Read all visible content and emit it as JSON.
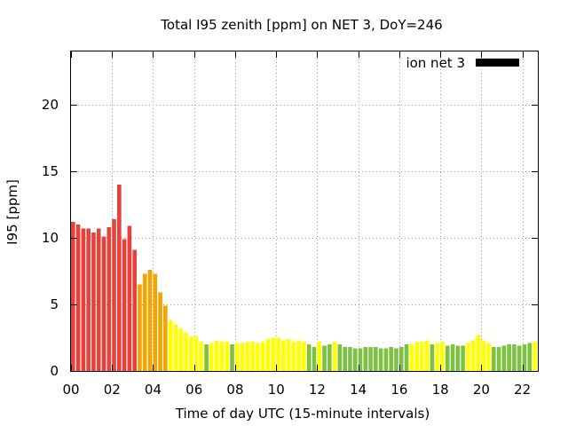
{
  "chart_data": {
    "type": "bar",
    "title": "Total I95 zenith [ppm] on NET 3, DoY=246",
    "xlabel": "Time of day UTC (15-minute intervals)",
    "ylabel": "I95 [ppm]",
    "ylim": [
      0,
      24
    ],
    "xlim": [
      0,
      22.75
    ],
    "grid": true,
    "legend_position": "top-right",
    "legend": [
      {
        "name": "ion net 3",
        "color": "#000000"
      }
    ],
    "x_ticks": [
      "00",
      "02",
      "04",
      "06",
      "08",
      "10",
      "12",
      "14",
      "16",
      "18",
      "20",
      "22"
    ],
    "y_ticks": [
      "0",
      "5",
      "10",
      "15",
      "20"
    ],
    "interval_hours": 0.25,
    "colors": {
      "red": "#e8413c",
      "orange": "#f5a300",
      "yellow": "#ffff00",
      "green": "#7dc142"
    },
    "bars": [
      {
        "x": 0.0,
        "y": 11.2,
        "c": "red"
      },
      {
        "x": 0.25,
        "y": 11.0,
        "c": "red"
      },
      {
        "x": 0.5,
        "y": 10.7,
        "c": "red"
      },
      {
        "x": 0.75,
        "y": 10.7,
        "c": "red"
      },
      {
        "x": 1.0,
        "y": 10.4,
        "c": "red"
      },
      {
        "x": 1.25,
        "y": 10.7,
        "c": "red"
      },
      {
        "x": 1.5,
        "y": 10.1,
        "c": "red"
      },
      {
        "x": 1.75,
        "y": 10.8,
        "c": "red"
      },
      {
        "x": 2.0,
        "y": 11.4,
        "c": "red"
      },
      {
        "x": 2.25,
        "y": 14.0,
        "c": "red"
      },
      {
        "x": 2.5,
        "y": 9.9,
        "c": "red"
      },
      {
        "x": 2.75,
        "y": 10.9,
        "c": "red"
      },
      {
        "x": 3.0,
        "y": 9.1,
        "c": "red"
      },
      {
        "x": 3.25,
        "y": 6.5,
        "c": "orange"
      },
      {
        "x": 3.5,
        "y": 7.3,
        "c": "orange"
      },
      {
        "x": 3.75,
        "y": 7.6,
        "c": "orange"
      },
      {
        "x": 4.0,
        "y": 7.3,
        "c": "orange"
      },
      {
        "x": 4.25,
        "y": 5.9,
        "c": "orange"
      },
      {
        "x": 4.5,
        "y": 4.9,
        "c": "orange"
      },
      {
        "x": 4.75,
        "y": 3.8,
        "c": "yellow"
      },
      {
        "x": 5.0,
        "y": 3.5,
        "c": "yellow"
      },
      {
        "x": 5.25,
        "y": 3.2,
        "c": "yellow"
      },
      {
        "x": 5.5,
        "y": 2.9,
        "c": "yellow"
      },
      {
        "x": 5.75,
        "y": 2.6,
        "c": "yellow"
      },
      {
        "x": 6.0,
        "y": 2.6,
        "c": "yellow"
      },
      {
        "x": 6.25,
        "y": 2.2,
        "c": "yellow"
      },
      {
        "x": 6.5,
        "y": 2.0,
        "c": "green"
      },
      {
        "x": 6.75,
        "y": 2.1,
        "c": "yellow"
      },
      {
        "x": 7.0,
        "y": 2.3,
        "c": "yellow"
      },
      {
        "x": 7.25,
        "y": 2.2,
        "c": "yellow"
      },
      {
        "x": 7.5,
        "y": 2.2,
        "c": "yellow"
      },
      {
        "x": 7.75,
        "y": 2.0,
        "c": "green"
      },
      {
        "x": 8.0,
        "y": 2.1,
        "c": "yellow"
      },
      {
        "x": 8.25,
        "y": 2.1,
        "c": "yellow"
      },
      {
        "x": 8.5,
        "y": 2.2,
        "c": "yellow"
      },
      {
        "x": 8.75,
        "y": 2.2,
        "c": "yellow"
      },
      {
        "x": 9.0,
        "y": 2.1,
        "c": "yellow"
      },
      {
        "x": 9.25,
        "y": 2.2,
        "c": "yellow"
      },
      {
        "x": 9.5,
        "y": 2.4,
        "c": "yellow"
      },
      {
        "x": 9.75,
        "y": 2.5,
        "c": "yellow"
      },
      {
        "x": 10.0,
        "y": 2.5,
        "c": "yellow"
      },
      {
        "x": 10.25,
        "y": 2.3,
        "c": "yellow"
      },
      {
        "x": 10.5,
        "y": 2.4,
        "c": "yellow"
      },
      {
        "x": 10.75,
        "y": 2.2,
        "c": "yellow"
      },
      {
        "x": 11.0,
        "y": 2.3,
        "c": "yellow"
      },
      {
        "x": 11.25,
        "y": 2.2,
        "c": "yellow"
      },
      {
        "x": 11.5,
        "y": 2.0,
        "c": "green"
      },
      {
        "x": 11.75,
        "y": 1.8,
        "c": "green"
      },
      {
        "x": 12.0,
        "y": 2.2,
        "c": "yellow"
      },
      {
        "x": 12.25,
        "y": 1.9,
        "c": "green"
      },
      {
        "x": 12.5,
        "y": 2.0,
        "c": "green"
      },
      {
        "x": 12.75,
        "y": 2.2,
        "c": "yellow"
      },
      {
        "x": 13.0,
        "y": 2.0,
        "c": "green"
      },
      {
        "x": 13.25,
        "y": 1.8,
        "c": "green"
      },
      {
        "x": 13.5,
        "y": 1.8,
        "c": "green"
      },
      {
        "x": 13.75,
        "y": 1.7,
        "c": "green"
      },
      {
        "x": 14.0,
        "y": 1.7,
        "c": "green"
      },
      {
        "x": 14.25,
        "y": 1.8,
        "c": "green"
      },
      {
        "x": 14.5,
        "y": 1.8,
        "c": "green"
      },
      {
        "x": 14.75,
        "y": 1.8,
        "c": "green"
      },
      {
        "x": 15.0,
        "y": 1.7,
        "c": "green"
      },
      {
        "x": 15.25,
        "y": 1.7,
        "c": "green"
      },
      {
        "x": 15.5,
        "y": 1.8,
        "c": "green"
      },
      {
        "x": 15.75,
        "y": 1.7,
        "c": "green"
      },
      {
        "x": 16.0,
        "y": 1.8,
        "c": "green"
      },
      {
        "x": 16.25,
        "y": 2.0,
        "c": "green"
      },
      {
        "x": 16.5,
        "y": 2.0,
        "c": "yellow"
      },
      {
        "x": 16.75,
        "y": 2.2,
        "c": "yellow"
      },
      {
        "x": 17.0,
        "y": 2.2,
        "c": "yellow"
      },
      {
        "x": 17.25,
        "y": 2.3,
        "c": "yellow"
      },
      {
        "x": 17.5,
        "y": 2.0,
        "c": "green"
      },
      {
        "x": 17.75,
        "y": 2.1,
        "c": "yellow"
      },
      {
        "x": 18.0,
        "y": 2.2,
        "c": "yellow"
      },
      {
        "x": 18.25,
        "y": 1.9,
        "c": "green"
      },
      {
        "x": 18.5,
        "y": 2.0,
        "c": "green"
      },
      {
        "x": 18.75,
        "y": 1.9,
        "c": "green"
      },
      {
        "x": 19.0,
        "y": 1.9,
        "c": "green"
      },
      {
        "x": 19.25,
        "y": 2.1,
        "c": "yellow"
      },
      {
        "x": 19.5,
        "y": 2.3,
        "c": "yellow"
      },
      {
        "x": 19.75,
        "y": 2.7,
        "c": "yellow"
      },
      {
        "x": 20.0,
        "y": 2.3,
        "c": "yellow"
      },
      {
        "x": 20.25,
        "y": 2.1,
        "c": "yellow"
      },
      {
        "x": 20.5,
        "y": 1.8,
        "c": "green"
      },
      {
        "x": 20.75,
        "y": 1.8,
        "c": "green"
      },
      {
        "x": 21.0,
        "y": 1.9,
        "c": "green"
      },
      {
        "x": 21.25,
        "y": 2.0,
        "c": "green"
      },
      {
        "x": 21.5,
        "y": 2.0,
        "c": "green"
      },
      {
        "x": 21.75,
        "y": 1.9,
        "c": "green"
      },
      {
        "x": 22.0,
        "y": 2.0,
        "c": "green"
      },
      {
        "x": 22.25,
        "y": 2.1,
        "c": "green"
      },
      {
        "x": 22.5,
        "y": 2.2,
        "c": "yellow"
      }
    ]
  }
}
